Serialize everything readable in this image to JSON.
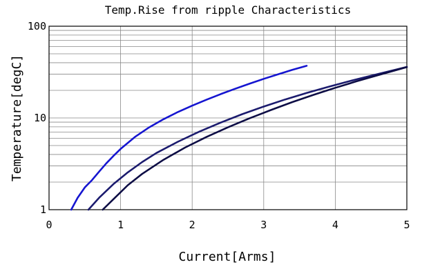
{
  "chart_data": {
    "type": "line",
    "title": "Temp.Rise from ripple Characteristics",
    "xlabel": "Current[Arms]",
    "ylabel": "Temperature[degC]",
    "xlim": [
      0,
      5
    ],
    "ylim": [
      1,
      100
    ],
    "yscale": "log",
    "grid": true,
    "legend": "none",
    "x_ticks": [
      "0",
      "1",
      "2",
      "3",
      "4",
      "5"
    ],
    "y_ticks": [
      "1",
      "10",
      "100"
    ],
    "series": [
      {
        "color": "#1515d0",
        "points": [
          [
            0.31,
            1.0
          ],
          [
            0.4,
            1.35
          ],
          [
            0.5,
            1.75
          ],
          [
            0.6,
            2.1
          ],
          [
            0.7,
            2.6
          ],
          [
            0.8,
            3.2
          ],
          [
            0.9,
            3.85
          ],
          [
            1.0,
            4.6
          ],
          [
            1.2,
            6.2
          ],
          [
            1.4,
            7.9
          ],
          [
            1.6,
            9.7
          ],
          [
            1.8,
            11.6
          ],
          [
            2.0,
            13.6
          ],
          [
            2.2,
            15.8
          ],
          [
            2.4,
            18.2
          ],
          [
            2.6,
            20.8
          ],
          [
            2.8,
            23.6
          ],
          [
            3.0,
            26.7
          ],
          [
            3.2,
            29.9
          ],
          [
            3.4,
            33.4
          ],
          [
            3.6,
            37.0
          ]
        ]
      },
      {
        "color": "#1b1b6e",
        "points": [
          [
            0.55,
            1.0
          ],
          [
            0.7,
            1.35
          ],
          [
            0.9,
            1.9
          ],
          [
            1.1,
            2.55
          ],
          [
            1.3,
            3.3
          ],
          [
            1.5,
            4.15
          ],
          [
            1.8,
            5.5
          ],
          [
            2.1,
            7.1
          ],
          [
            2.4,
            8.9
          ],
          [
            2.7,
            11.0
          ],
          [
            3.0,
            13.3
          ],
          [
            3.3,
            15.9
          ],
          [
            3.6,
            18.7
          ],
          [
            3.9,
            21.8
          ],
          [
            4.2,
            25.2
          ],
          [
            4.5,
            28.9
          ],
          [
            4.8,
            32.9
          ],
          [
            5.0,
            36.0
          ]
        ]
      },
      {
        "color": "#0d0d45",
        "points": [
          [
            0.75,
            1.0
          ],
          [
            0.9,
            1.3
          ],
          [
            1.1,
            1.85
          ],
          [
            1.3,
            2.45
          ],
          [
            1.6,
            3.5
          ],
          [
            1.9,
            4.75
          ],
          [
            2.2,
            6.2
          ],
          [
            2.5,
            7.9
          ],
          [
            2.8,
            9.9
          ],
          [
            3.1,
            12.2
          ],
          [
            3.4,
            14.9
          ],
          [
            3.7,
            17.9
          ],
          [
            4.0,
            21.3
          ],
          [
            4.3,
            25.1
          ],
          [
            4.6,
            29.3
          ],
          [
            4.8,
            32.4
          ],
          [
            5.0,
            35.8
          ]
        ]
      }
    ]
  }
}
